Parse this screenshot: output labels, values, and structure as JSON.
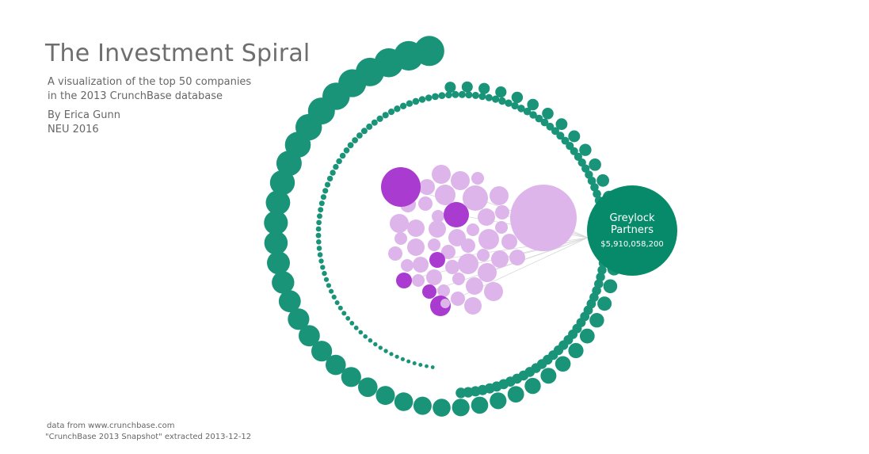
{
  "header": {
    "title": "The Investment Spiral",
    "subtitle_line1": "A visualization of the top 50 companies",
    "subtitle_line2": "in the 2013 CrunchBase database",
    "author": "By Erica Gunn",
    "affiliation": "NEU 2016"
  },
  "footer": {
    "source": "data from www.crunchbase.com",
    "snapshot": "\"CrunchBase 2013 Snapshot\" extracted 2013-12-12"
  },
  "colors": {
    "investor": "#1a9479",
    "investor_highlight": "#078a6a",
    "company": "#ddb5ea",
    "company_highlight": "#a93bd1",
    "link": "#d8d8d8"
  },
  "chart_data": {
    "type": "scatter",
    "selected_investor": {
      "name_line1": "Greylock",
      "name_line2": "Partners",
      "amount_label": "$5,910,058,200",
      "amount": 5910058200
    },
    "investor_spiral": {
      "outer_ring_count": 56,
      "inner_ring_count": 130
    },
    "company_count": 50,
    "highlighted_company_count": 7
  }
}
